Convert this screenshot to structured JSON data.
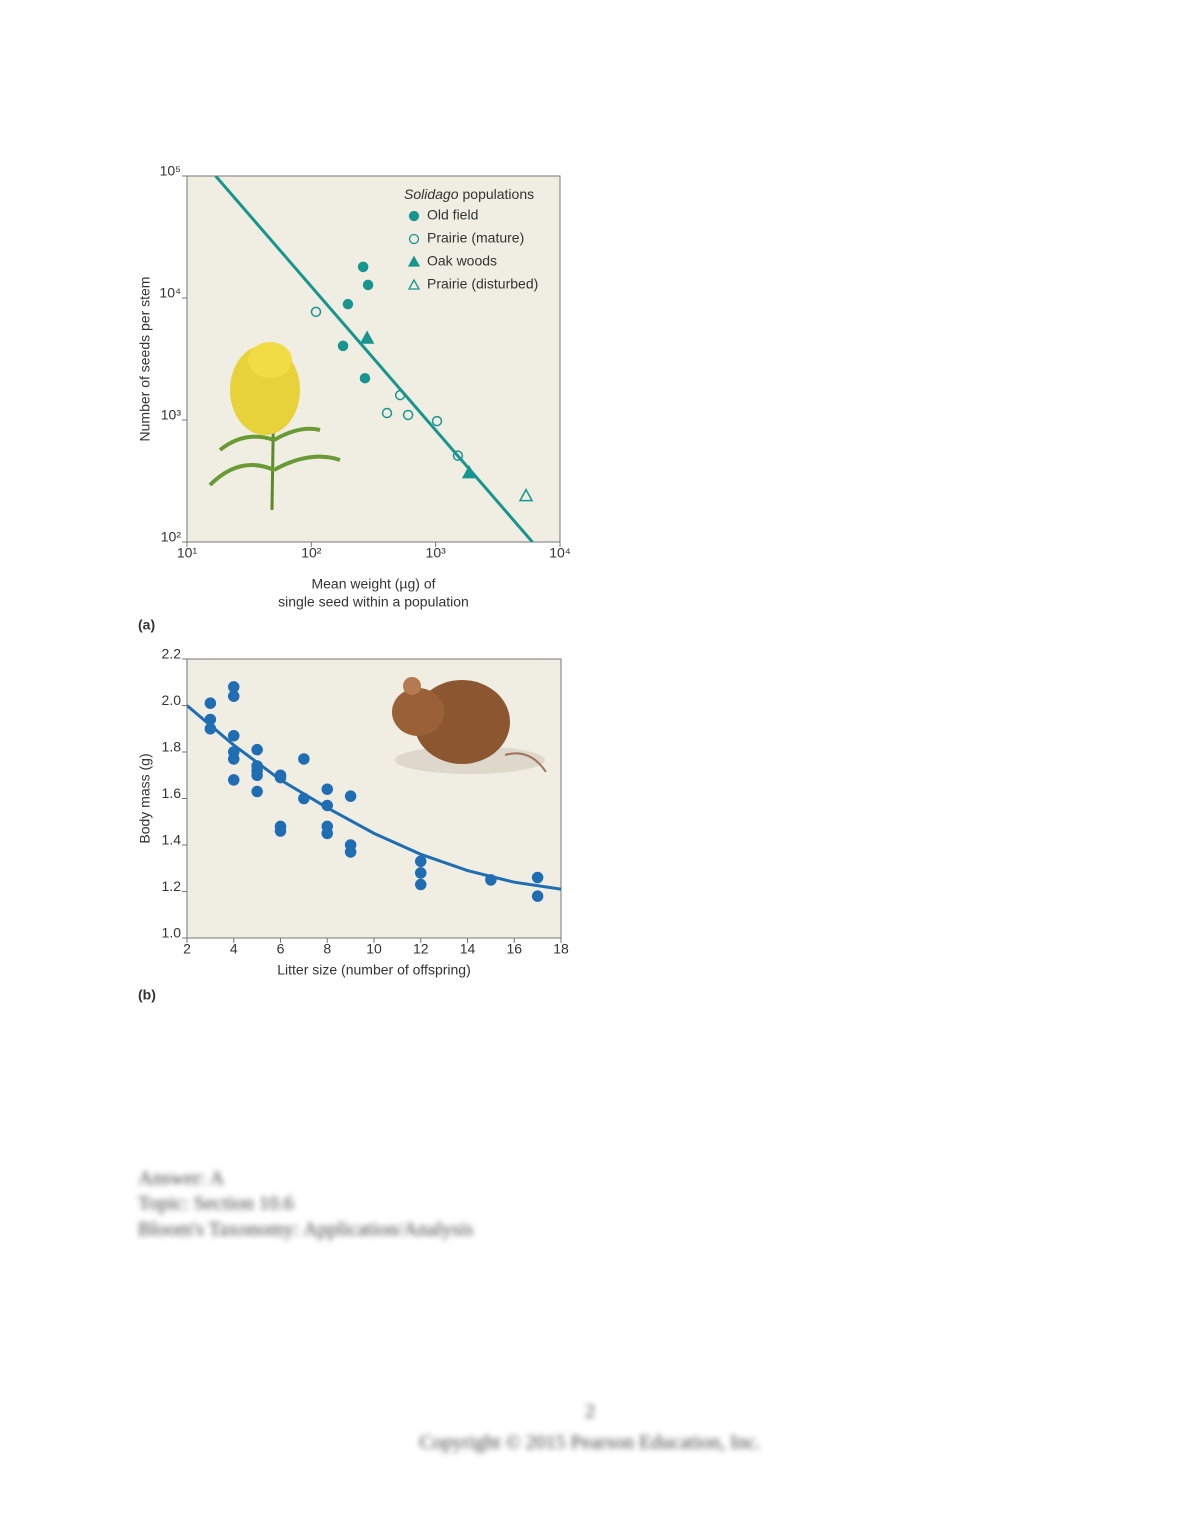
{
  "chart_data": [
    {
      "type": "scatter",
      "panel_label": "(a)",
      "xlabel": [
        "Mean weight (µg) of",
        "single seed within a population"
      ],
      "ylabel": "Number of seeds per stem",
      "xscale": "log",
      "yscale": "log",
      "xlim": [
        10,
        10000
      ],
      "ylim": [
        100,
        100000
      ],
      "xticks": [
        {
          "value": 10,
          "label": "10¹"
        },
        {
          "value": 100,
          "label": "10²"
        },
        {
          "value": 1000,
          "label": "10³"
        },
        {
          "value": 10000,
          "label": "10⁴"
        }
      ],
      "yticks": [
        {
          "value": 100,
          "label": "10²"
        },
        {
          "value": 1000,
          "label": "10³"
        },
        {
          "value": 10000,
          "label": "10⁴"
        },
        {
          "value": 100000,
          "label": "10⁵"
        }
      ],
      "grid": false,
      "legend_title": [
        "Solidago",
        "populations"
      ],
      "legend": "upper right",
      "series": [
        {
          "name": "Old field",
          "color": "#17958f",
          "marker": "circle",
          "filled": true,
          "x": [
            261,
            286,
            197,
            180,
            270
          ],
          "values": [
            18000,
            12800,
            8900,
            4050,
            2200
          ]
        },
        {
          "name": "Prairie (mature)",
          "color": "#17958f",
          "marker": "circle",
          "filled": false,
          "x": [
            109,
            406,
            518,
            600,
            1025,
            1510
          ],
          "values": [
            7700,
            1140,
            1600,
            1100,
            980,
            510
          ]
        },
        {
          "name": "Oak woods",
          "color": "#17958f",
          "marker": "triangle",
          "filled": true,
          "x": [
            281,
            1860
          ],
          "values": [
            4700,
            370
          ]
        },
        {
          "name": "Prairie (disturbed)",
          "color": "#17958f",
          "marker": "triangle",
          "filled": false,
          "x": [
            5330
          ],
          "values": [
            240
          ]
        }
      ],
      "fit_line": {
        "color": "#17958f",
        "x": [
          17,
          6000
        ],
        "values": [
          100000,
          100
        ]
      }
    },
    {
      "type": "scatter",
      "panel_label": "(b)",
      "xlabel": [
        "Litter size (number of offspring)"
      ],
      "ylabel": "Body mass (g)",
      "xscale": "linear",
      "yscale": "linear",
      "xlim": [
        2,
        18
      ],
      "ylim": [
        1.0,
        2.2
      ],
      "xticks": [
        2,
        4,
        6,
        8,
        10,
        12,
        14,
        16,
        18
      ],
      "yticks": [
        {
          "value": 1.0,
          "label": "1.0"
        },
        1.2,
        1.4,
        1.6,
        1.8,
        {
          "value": 2.0,
          "label": "2.0"
        },
        2.2
      ],
      "grid": false,
      "series": [
        {
          "color": "#1f6db3",
          "marker": "circle",
          "filled": true,
          "x": [
            3,
            3,
            3,
            4,
            4,
            4,
            4,
            4,
            4,
            5,
            5,
            5,
            5,
            5,
            6,
            6,
            6,
            6,
            7,
            7,
            8,
            8,
            8,
            8,
            9,
            9,
            9,
            12,
            12,
            12,
            15,
            17,
            17
          ],
          "values": [
            2.01,
            1.94,
            1.9,
            2.08,
            2.04,
            1.87,
            1.8,
            1.77,
            1.68,
            1.81,
            1.74,
            1.72,
            1.7,
            1.63,
            1.7,
            1.69,
            1.48,
            1.46,
            1.77,
            1.6,
            1.64,
            1.57,
            1.48,
            1.45,
            1.61,
            1.4,
            1.37,
            1.33,
            1.28,
            1.23,
            1.25,
            1.26,
            1.18
          ]
        }
      ],
      "fit_line": {
        "color": "#1f6db3",
        "x": [
          2,
          4,
          6,
          8,
          10,
          12,
          14,
          16,
          18
        ],
        "values": [
          2.0,
          1.83,
          1.68,
          1.56,
          1.45,
          1.36,
          1.29,
          1.24,
          1.21
        ]
      }
    }
  ],
  "footer": {
    "answer": "Answer: A",
    "topic": "Topic: Section 10.6",
    "bloom": "Bloom's Taxonomy: Application/Analysis",
    "page_number": "2",
    "copyright": "Copyright © 2015 Pearson Education, Inc."
  }
}
